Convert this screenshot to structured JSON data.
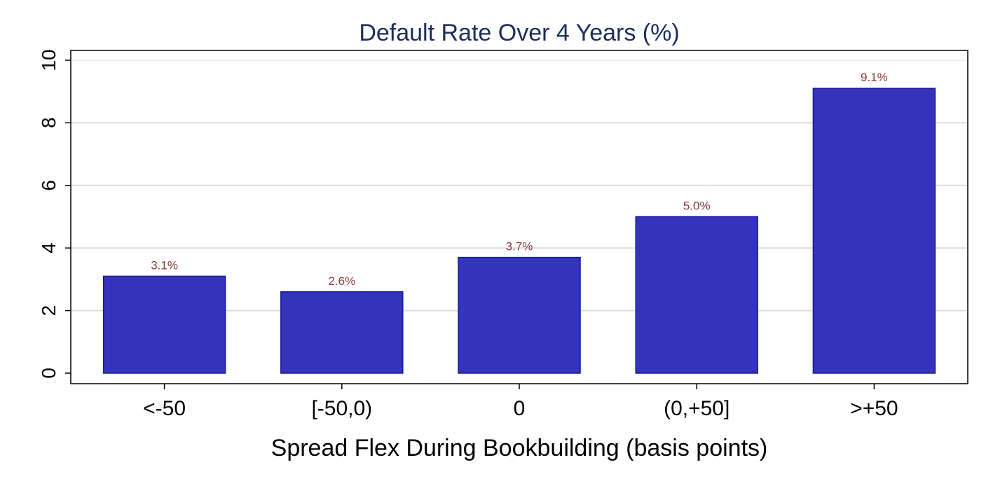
{
  "chart_data": {
    "type": "bar",
    "title": "Default Rate Over 4 Years (%)",
    "xlabel": "Spread Flex During Bookbuilding (basis points)",
    "ylabel": "",
    "categories": [
      "<-50",
      "[-50,0)",
      "0",
      "(0,+50]",
      ">+50"
    ],
    "values": [
      3.1,
      2.6,
      3.7,
      5.0,
      9.1
    ],
    "data_labels": [
      "3.1%",
      "2.6%",
      "3.7%",
      "5.0%",
      "9.1%"
    ],
    "ylim": [
      0,
      10
    ],
    "yticks": [
      0,
      2,
      4,
      6,
      8,
      10
    ],
    "ytick_labels": [
      "0",
      "2",
      "4",
      "6",
      "8",
      "10"
    ],
    "grid": true,
    "legend": "none",
    "colors": {
      "bar_fill": "#3333bb",
      "bar_stroke": "#1a1a99",
      "data_label": "#8b3a3a",
      "title": "#1c2d5a",
      "grid": "#dddddd"
    }
  }
}
